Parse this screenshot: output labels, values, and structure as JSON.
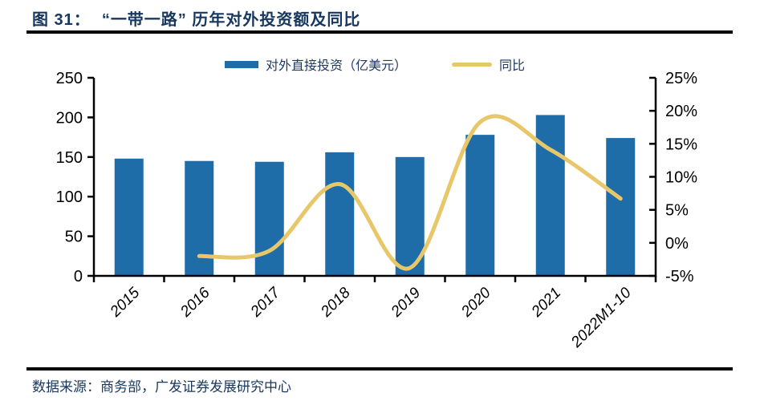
{
  "header": {
    "figure_label": "图 31：",
    "title": "“一带一路” 历年对外投资额及同比"
  },
  "legend": [
    {
      "label": "对外直接投资（亿美元）",
      "type": "bar"
    },
    {
      "label": "同比",
      "type": "line"
    }
  ],
  "footer": {
    "source": "数据来源：商务部，广发证券发展研究中心"
  },
  "colors": {
    "bar": "#1f6da8",
    "line": "#e8c76b",
    "title_text": "#17375e",
    "axis": "#000000"
  },
  "chart_data": {
    "type": "bar",
    "subtype": "bar-line-combo",
    "title": "“一带一路” 历年对外投资额及同比",
    "categories": [
      "2015",
      "2016",
      "2017",
      "2018",
      "2019",
      "2020",
      "2021",
      "2022M1-10"
    ],
    "series": [
      {
        "name": "对外直接投资（亿美元）",
        "type": "bar",
        "axis": "left",
        "values": [
          148,
          145,
          144,
          156,
          150,
          178,
          203,
          174
        ]
      },
      {
        "name": "同比",
        "type": "line",
        "axis": "right",
        "unit": "%",
        "values": [
          null,
          -2.0,
          -1.2,
          8.9,
          -3.8,
          18.3,
          14.1,
          6.7
        ]
      }
    ],
    "left_axis": {
      "min": 0,
      "max": 250,
      "ticks": [
        0,
        50,
        100,
        150,
        200,
        250
      ]
    },
    "right_axis": {
      "min": -5,
      "max": 25,
      "ticks": [
        -5,
        0,
        5,
        10,
        15,
        20,
        25
      ],
      "suffix": "%"
    },
    "grid": false,
    "legend_position": "top-center",
    "line_style": "smooth"
  }
}
